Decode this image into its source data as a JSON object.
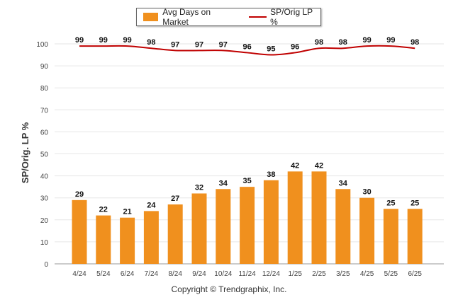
{
  "chart_data": {
    "type": "bar",
    "categories": [
      "4/24",
      "5/24",
      "6/24",
      "7/24",
      "8/24",
      "9/24",
      "10/24",
      "11/24",
      "12/24",
      "1/25",
      "2/25",
      "3/25",
      "4/25",
      "5/25",
      "6/25"
    ],
    "series": [
      {
        "name": "Avg Days on Market",
        "type": "bar",
        "values": [
          29,
          22,
          21,
          24,
          27,
          32,
          34,
          35,
          38,
          42,
          42,
          34,
          30,
          25,
          25
        ],
        "color": "#f0901e"
      },
      {
        "name": "SP/Orig LP %",
        "type": "line",
        "values": [
          99,
          99,
          99,
          98,
          97,
          97,
          97,
          96,
          95,
          96,
          98,
          98,
          99,
          99,
          98
        ],
        "color": "#c00000"
      }
    ],
    "ylabel": "SP/Orig. LP %",
    "ylim": [
      0,
      100
    ],
    "yticks": [
      0,
      10,
      20,
      30,
      40,
      50,
      60,
      70,
      80,
      90,
      100
    ],
    "grid": true,
    "legend_position": "top-center"
  },
  "footer": {
    "copyright": "Copyright © Trendgraphix, Inc."
  }
}
